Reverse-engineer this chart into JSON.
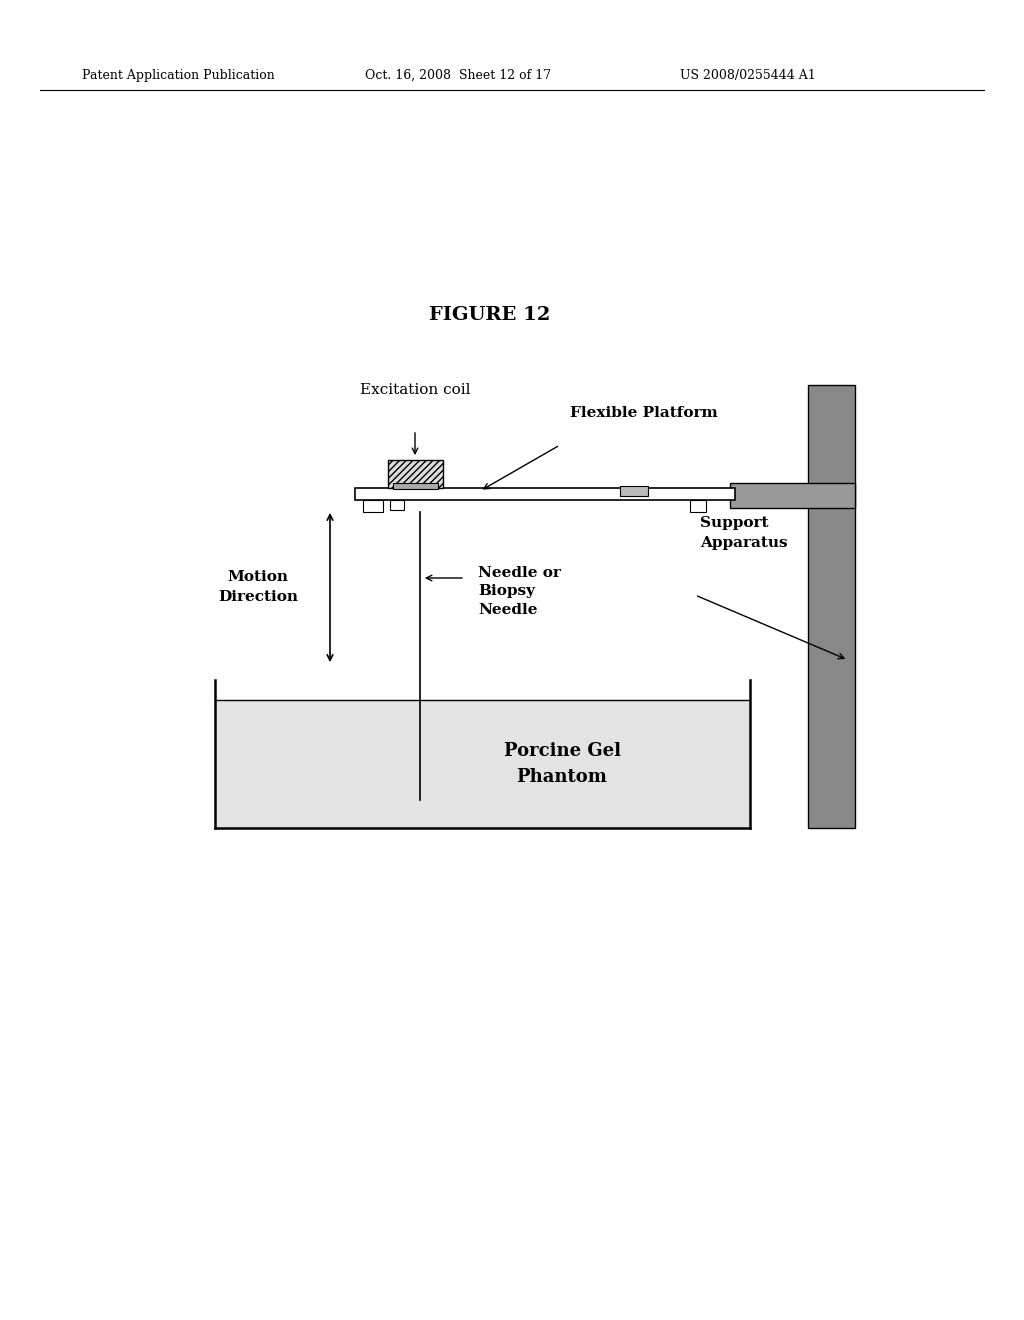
{
  "header_left": "Patent Application Publication",
  "header_mid": "Oct. 16, 2008  Sheet 12 of 17",
  "header_right": "US 2008/0255444 A1",
  "figure_title": "FIGURE 12",
  "bg_color": "#ffffff",
  "label_excitation_coil": "Excitation coil",
  "label_flexible_platform": "Flexible Platform",
  "label_motion_direction": "Motion\nDirection",
  "label_needle": "Needle or\nBiopsy\nNeedle",
  "label_support": "Support\nApparatus",
  "label_porcine": "Porcine Gel\nPhantom",
  "gel_color": "#cccccc",
  "support_color": "#888888",
  "coil_color": "#cccccc",
  "arm_color": "#999999"
}
